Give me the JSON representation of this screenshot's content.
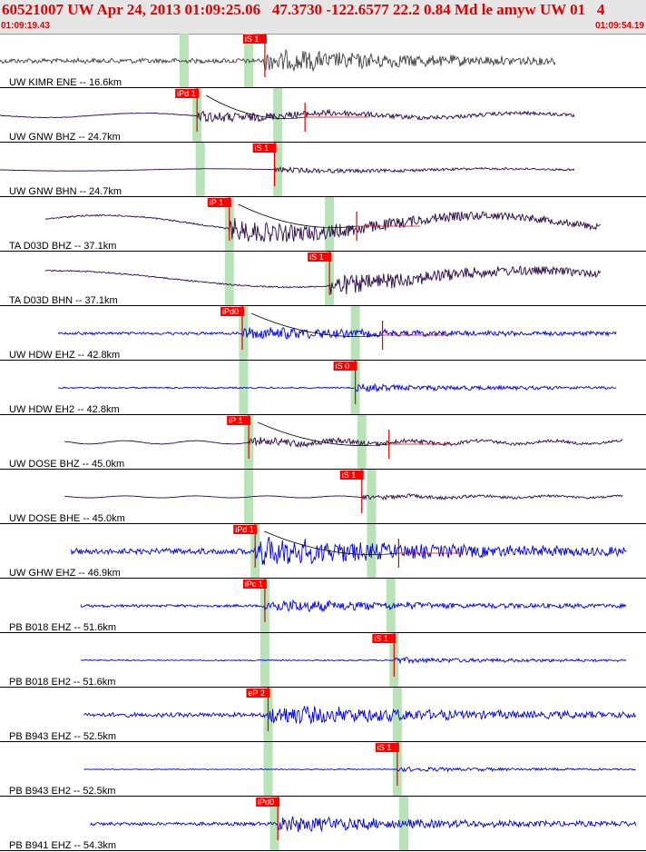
{
  "header": {
    "title": "60521007 UW Apr 24, 2013 01:09:25.06   47.3730 -122.6577 22.2 0.84 Md le amyw UW 01   4",
    "time_start": "01:09:19.43",
    "time_end": "01:09:54.19"
  },
  "colors": {
    "accent_red": "#e00000",
    "pick_box": "#ff0000",
    "arrival_band": "#b7e3b7",
    "header_bg": "#e6e6e6"
  },
  "chart_data": {
    "type": "line",
    "title": "60521007 UW Apr 24, 2013 01:09:25.06   47.3730 -122.6577 22.2 0.84 Md le amyw UW 01   4",
    "x_range": [
      "01:09:19.43",
      "01:09:54.19"
    ],
    "x_range_seconds": [
      0,
      34.76
    ],
    "grid": false,
    "legend": "none",
    "series": [
      {
        "name": "UW KIMR ENE -- 16.6km",
        "color": "#404040",
        "data_span": [
          0.0,
          0.86
        ],
        "style": "noise",
        "amp": 0.32,
        "freq": 0.35,
        "onset": 0.41,
        "pick": {
          "label": "iS 1",
          "pos": 0.41
        },
        "p_band": 0.285,
        "s_band": 0.385,
        "coda": false
      },
      {
        "name": "UW GNW BHZ -- 24.7km",
        "color": "#2b0a4a",
        "data_span": [
          0.0,
          0.89
        ],
        "style": "wavy",
        "amp": 0.16,
        "freq": 0.03,
        "onset": 0.305,
        "pick": {
          "label": "iPd 1",
          "pos": 0.305
        },
        "p_band": 0.305,
        "s_band": 0.43,
        "coda": true
      },
      {
        "name": "UW GNW BHN -- 24.7km",
        "color": "#2b0a4a",
        "data_span": [
          0.0,
          0.89
        ],
        "style": "wavy",
        "amp": 0.08,
        "freq": 0.02,
        "onset": 0.425,
        "pick": {
          "label": "iS 1",
          "pos": 0.425
        },
        "p_band": 0.31,
        "s_band": 0.43,
        "coda": false
      },
      {
        "name": "TA D03D BHZ -- 37.1km",
        "color": "#2b0a4a",
        "data_span": [
          0.07,
          0.93
        ],
        "style": "longwave",
        "amp": 0.55,
        "freq": 0.015,
        "onset": 0.355,
        "pick": {
          "label": "iP 1",
          "pos": 0.355
        },
        "p_band": 0.355,
        "s_band": 0.51,
        "coda": true
      },
      {
        "name": "TA D03D BHN -- 37.1km",
        "color": "#2b0a4a",
        "data_span": [
          0.07,
          0.93
        ],
        "style": "longwave",
        "amp": 0.5,
        "freq": 0.012,
        "onset": 0.51,
        "pick": {
          "label": "iS 1",
          "pos": 0.51
        },
        "p_band": 0.355,
        "s_band": 0.51,
        "coda": false
      },
      {
        "name": "UW HDW EHZ -- 42.8km",
        "color": "#0000e0",
        "data_span": [
          0.09,
          0.955
        ],
        "style": "noise",
        "amp": 0.18,
        "freq": 0.5,
        "onset": 0.375,
        "pick": {
          "label": "iPd0",
          "pos": 0.375
        },
        "p_band": 0.377,
        "s_band": 0.55,
        "coda": true
      },
      {
        "name": "UW HDW EH2 -- 42.8km",
        "color": "#0000e0",
        "data_span": [
          0.09,
          0.955
        ],
        "style": "noise",
        "amp": 0.1,
        "freq": 0.5,
        "onset": 0.55,
        "pick": {
          "label": "iS 0",
          "pos": 0.55
        },
        "p_band": 0.377,
        "s_band": 0.55,
        "coda": false
      },
      {
        "name": "UW DOSE BHZ -- 45.0km",
        "color": "#2b0a4a",
        "data_span": [
          0.1,
          0.965
        ],
        "style": "wavy",
        "amp": 0.12,
        "freq": 0.08,
        "onset": 0.385,
        "pick": {
          "label": "iP 1",
          "pos": 0.385
        },
        "p_band": 0.385,
        "s_band": 0.56,
        "coda": true
      },
      {
        "name": "UW DOSE BHE -- 45.0km",
        "color": "#2b0a4a",
        "data_span": [
          0.1,
          0.965
        ],
        "style": "wavy",
        "amp": 0.07,
        "freq": 0.08,
        "onset": 0.56,
        "pick": {
          "label": "iS 1",
          "pos": 0.56
        },
        "p_band": 0.385,
        "s_band": 0.575,
        "coda": false
      },
      {
        "name": "UW GHW EHZ -- 46.9km",
        "color": "#0000e0",
        "data_span": [
          0.11,
          0.97
        ],
        "style": "noise",
        "amp": 0.4,
        "freq": 0.5,
        "onset": 0.395,
        "pick": {
          "label": "iPd 1",
          "pos": 0.395
        },
        "p_band": 0.395,
        "s_band": 0.575,
        "coda": true
      },
      {
        "name": "PB B018 EHZ -- 51.6km",
        "color": "#0000e0",
        "data_span": [
          0.125,
          0.97
        ],
        "style": "noise",
        "amp": 0.18,
        "freq": 0.5,
        "onset": 0.41,
        "pick": {
          "label": "iPc 1",
          "pos": 0.41
        },
        "p_band": 0.41,
        "s_band": 0.605,
        "coda": false
      },
      {
        "name": "PB B018 EH2 -- 51.6km",
        "color": "#0000e0",
        "data_span": [
          0.125,
          0.97
        ],
        "style": "noise",
        "amp": 0.08,
        "freq": 0.5,
        "onset": 0.61,
        "pick": {
          "label": "iS 1",
          "pos": 0.61
        },
        "p_band": 0.41,
        "s_band": 0.61,
        "coda": false
      },
      {
        "name": "PB B943 EHZ -- 52.5km",
        "color": "#0000e0",
        "data_span": [
          0.13,
          0.985
        ],
        "style": "noise",
        "amp": 0.28,
        "freq": 0.5,
        "onset": 0.415,
        "pick": {
          "label": "eP 2",
          "pos": 0.415
        },
        "p_band": 0.415,
        "s_band": 0.615,
        "coda": false
      },
      {
        "name": "PB B943 EH2 -- 52.5km",
        "color": "#0000e0",
        "data_span": [
          0.13,
          0.985
        ],
        "style": "noise",
        "amp": 0.06,
        "freq": 0.5,
        "onset": 0.615,
        "pick": {
          "label": "iS 1",
          "pos": 0.615
        },
        "p_band": 0.415,
        "s_band": 0.615,
        "coda": false
      },
      {
        "name": "PB B941 EHZ -- 54.3km",
        "color": "#0000e0",
        "data_span": [
          0.14,
          0.985
        ],
        "style": "noise",
        "amp": 0.22,
        "freq": 0.5,
        "onset": 0.43,
        "pick": {
          "label": "iPd0",
          "pos": 0.43
        },
        "p_band": 0.425,
        "s_band": 0.625,
        "coda": false
      }
    ]
  }
}
